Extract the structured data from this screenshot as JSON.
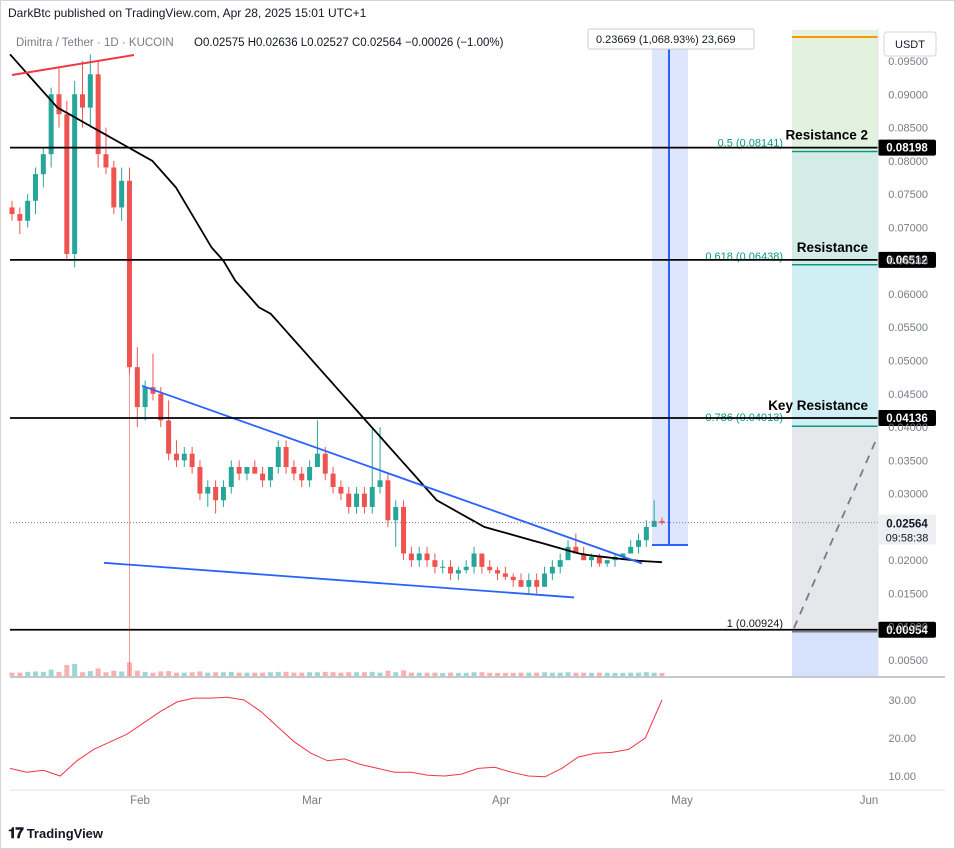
{
  "header": {
    "publisher": "DarkBtc published on TradingView.com, Apr 28, 2025 15:01 UTC+1"
  },
  "footer": {
    "brand": "TradingView",
    "logo_icon": "tradingview-logo-icon"
  },
  "chart_data": {
    "type": "candlestick",
    "symbol": "Dimitra / Tether · 1D · KUCOIN",
    "ohlc_label": "O0.02575 H0.02636 L0.02527 C0.02564 −0.00026 (−1.00%)",
    "currency": "USDT",
    "ylim": [
      0.0025,
      0.1
    ],
    "price_axis_ticks": [
      "0.09500",
      "0.09000",
      "0.08500",
      "0.08000",
      "0.07500",
      "0.07000",
      "0.06500",
      "0.06000",
      "0.05500",
      "0.05000",
      "0.04500",
      "0.04000",
      "0.03500",
      "0.03000",
      "0.02500",
      "0.02000",
      "0.01500",
      "0.01000",
      "0.00500"
    ],
    "time_axis_ticks": [
      "Feb",
      "Mar",
      "Apr",
      "May",
      "Jun"
    ],
    "last_price": "0.02564",
    "countdown": "09:58:38",
    "colors": {
      "up": "#26a69a",
      "down": "#ef5350",
      "ma": "#000000",
      "trend": "#2962ff",
      "rsi": "#f23645"
    },
    "horizontal_levels": [
      {
        "price": 0.08198,
        "label": "0.08198",
        "tag": "Resistance 2"
      },
      {
        "price": 0.06512,
        "label": "0.06512",
        "tag": "Resistance"
      },
      {
        "price": 0.04136,
        "label": "0.04136",
        "tag": "Key Resistance"
      },
      {
        "price": 0.00954,
        "label": "0.00954",
        "tag": ""
      }
    ],
    "fib_levels": [
      {
        "ratio": "0.5",
        "price": 0.08141,
        "label": "0.5 (0.08141)"
      },
      {
        "ratio": "0.618",
        "price": 0.06438,
        "label": "0.618 (0.06438)"
      },
      {
        "ratio": "0.786",
        "price": 0.04013,
        "label": "0.786 (0.04013)"
      },
      {
        "ratio": "1",
        "price": 0.00924,
        "label": "1 (0.00924)"
      }
    ],
    "measure_label": "0.23669 (1,068.93%) 23,669",
    "rsi_ticks": [
      "30.00",
      "20.00",
      "10.00"
    ],
    "candles": [
      [
        0.073,
        0.074,
        0.071,
        0.072
      ],
      [
        0.072,
        0.073,
        0.069,
        0.071
      ],
      [
        0.071,
        0.075,
        0.07,
        0.074
      ],
      [
        0.074,
        0.079,
        0.072,
        0.078
      ],
      [
        0.078,
        0.082,
        0.076,
        0.081
      ],
      [
        0.081,
        0.091,
        0.079,
        0.09
      ],
      [
        0.09,
        0.094,
        0.085,
        0.087
      ],
      [
        0.087,
        0.089,
        0.065,
        0.066
      ],
      [
        0.066,
        0.092,
        0.064,
        0.09
      ],
      [
        0.09,
        0.095,
        0.085,
        0.088
      ],
      [
        0.088,
        0.096,
        0.085,
        0.093
      ],
      [
        0.093,
        0.095,
        0.079,
        0.081
      ],
      [
        0.081,
        0.085,
        0.078,
        0.079
      ],
      [
        0.079,
        0.08,
        0.072,
        0.073
      ],
      [
        0.073,
        0.079,
        0.071,
        0.077
      ],
      [
        0.077,
        0.079,
        0.048,
        0.049
      ],
      [
        0.049,
        0.052,
        0.04,
        0.043
      ],
      [
        0.043,
        0.047,
        0.041,
        0.046
      ],
      [
        0.046,
        0.051,
        0.044,
        0.045
      ],
      [
        0.045,
        0.046,
        0.04,
        0.041
      ],
      [
        0.041,
        0.044,
        0.035,
        0.036
      ],
      [
        0.036,
        0.038,
        0.034,
        0.035
      ],
      [
        0.035,
        0.037,
        0.034,
        0.036
      ],
      [
        0.036,
        0.037,
        0.033,
        0.034
      ],
      [
        0.034,
        0.035,
        0.029,
        0.03
      ],
      [
        0.03,
        0.032,
        0.028,
        0.031
      ],
      [
        0.031,
        0.032,
        0.027,
        0.029
      ],
      [
        0.029,
        0.032,
        0.028,
        0.031
      ],
      [
        0.031,
        0.035,
        0.03,
        0.034
      ],
      [
        0.034,
        0.035,
        0.032,
        0.033
      ],
      [
        0.033,
        0.034,
        0.032,
        0.034
      ],
      [
        0.034,
        0.035,
        0.033,
        0.033
      ],
      [
        0.033,
        0.034,
        0.031,
        0.032
      ],
      [
        0.032,
        0.034,
        0.031,
        0.034
      ],
      [
        0.034,
        0.038,
        0.033,
        0.037
      ],
      [
        0.037,
        0.038,
        0.033,
        0.034
      ],
      [
        0.034,
        0.035,
        0.032,
        0.033
      ],
      [
        0.033,
        0.034,
        0.031,
        0.032
      ],
      [
        0.032,
        0.035,
        0.031,
        0.034
      ],
      [
        0.034,
        0.041,
        0.034,
        0.036
      ],
      [
        0.036,
        0.037,
        0.032,
        0.033
      ],
      [
        0.033,
        0.034,
        0.03,
        0.031
      ],
      [
        0.031,
        0.032,
        0.029,
        0.03
      ],
      [
        0.03,
        0.031,
        0.027,
        0.028
      ],
      [
        0.028,
        0.031,
        0.027,
        0.03
      ],
      [
        0.03,
        0.031,
        0.027,
        0.028
      ],
      [
        0.028,
        0.04,
        0.027,
        0.031
      ],
      [
        0.031,
        0.04,
        0.03,
        0.032
      ],
      [
        0.032,
        0.033,
        0.025,
        0.026
      ],
      [
        0.026,
        0.029,
        0.022,
        0.028
      ],
      [
        0.028,
        0.029,
        0.02,
        0.021
      ],
      [
        0.021,
        0.022,
        0.019,
        0.02
      ],
      [
        0.02,
        0.022,
        0.019,
        0.021
      ],
      [
        0.021,
        0.022,
        0.019,
        0.02
      ],
      [
        0.02,
        0.021,
        0.018,
        0.019
      ],
      [
        0.019,
        0.02,
        0.018,
        0.019
      ],
      [
        0.019,
        0.02,
        0.017,
        0.018
      ],
      [
        0.018,
        0.019,
        0.017,
        0.0185
      ],
      [
        0.0185,
        0.02,
        0.018,
        0.019
      ],
      [
        0.019,
        0.022,
        0.018,
        0.021
      ],
      [
        0.021,
        0.021,
        0.018,
        0.019
      ],
      [
        0.019,
        0.02,
        0.018,
        0.0185
      ],
      [
        0.0185,
        0.019,
        0.017,
        0.018
      ],
      [
        0.018,
        0.019,
        0.017,
        0.0175
      ],
      [
        0.0175,
        0.018,
        0.016,
        0.017
      ],
      [
        0.017,
        0.018,
        0.016,
        0.016
      ],
      [
        0.016,
        0.018,
        0.015,
        0.017
      ],
      [
        0.017,
        0.018,
        0.015,
        0.016
      ],
      [
        0.016,
        0.019,
        0.016,
        0.018
      ],
      [
        0.018,
        0.02,
        0.017,
        0.019
      ],
      [
        0.019,
        0.021,
        0.018,
        0.02
      ],
      [
        0.02,
        0.023,
        0.02,
        0.022
      ],
      [
        0.022,
        0.024,
        0.021,
        0.021
      ],
      [
        0.021,
        0.022,
        0.02,
        0.02
      ],
      [
        0.02,
        0.021,
        0.019,
        0.0205
      ],
      [
        0.0205,
        0.021,
        0.019,
        0.0195
      ],
      [
        0.0195,
        0.02,
        0.019,
        0.02
      ],
      [
        0.02,
        0.021,
        0.019,
        0.0205
      ],
      [
        0.0205,
        0.021,
        0.02,
        0.021
      ],
      [
        0.021,
        0.023,
        0.021,
        0.022
      ],
      [
        0.022,
        0.024,
        0.021,
        0.023
      ],
      [
        0.023,
        0.026,
        0.022,
        0.025
      ],
      [
        0.025,
        0.029,
        0.025,
        0.0259
      ],
      [
        0.0259,
        0.0264,
        0.0253,
        0.0256
      ]
    ],
    "ma": [
      0.096,
      0.094,
      0.092,
      0.09,
      0.088,
      0.087,
      0.086,
      0.085,
      0.084,
      0.083,
      0.082,
      0.081,
      0.08,
      0.078,
      0.076,
      0.073,
      0.07,
      0.067,
      0.065,
      0.062,
      0.06,
      0.058,
      0.057,
      0.055,
      0.053,
      0.051,
      0.049,
      0.047,
      0.045,
      0.043,
      0.041,
      0.039,
      0.037,
      0.035,
      0.033,
      0.031,
      0.029,
      0.028,
      0.027,
      0.026,
      0.025,
      0.0245,
      0.024,
      0.0235,
      0.023,
      0.0225,
      0.022,
      0.0215,
      0.021,
      0.0207,
      0.0205,
      0.0203,
      0.0201,
      0.0199,
      0.0198,
      0.0197
    ]
  }
}
